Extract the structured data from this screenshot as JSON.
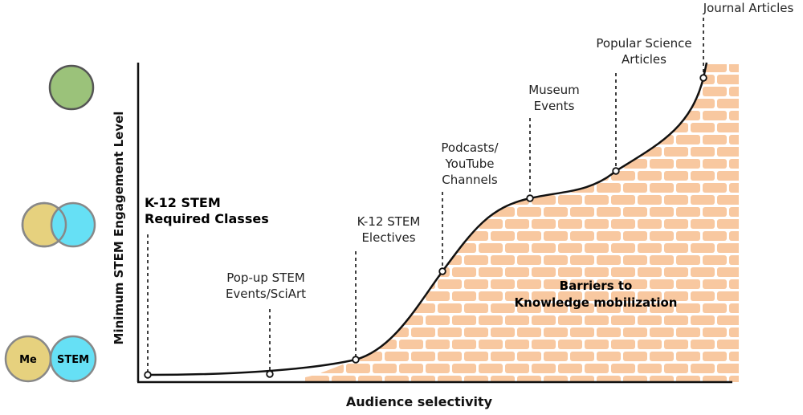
{
  "y_axis_label": "Minimum STEM Engagement Level",
  "x_axis_label": "Audience selectivity",
  "barrier_label": "Barriers to\nKnowledge mobilization",
  "legend": {
    "me_label": "Me",
    "stem_label": "STEM",
    "colors": {
      "me": "#e6d17e",
      "stem": "#66e0f5",
      "merged": "#9bc27a"
    }
  },
  "milestones": [
    {
      "name": "k12-required",
      "label": "K-12 STEM\nRequired Classes",
      "bold": true
    },
    {
      "name": "popup-stem",
      "label": "Pop-up STEM\nEvents/SciArt",
      "bold": false
    },
    {
      "name": "k12-electives",
      "label": "K-12 STEM\nElectives",
      "bold": false
    },
    {
      "name": "podcasts",
      "label": "Podcasts/\nYouTube\nChannels",
      "bold": false
    },
    {
      "name": "museum",
      "label": "Museum\nEvents",
      "bold": false
    },
    {
      "name": "popular-science",
      "label": "Popular Science\nArticles",
      "bold": false
    },
    {
      "name": "journal",
      "label": "Journal Articles",
      "bold": false
    }
  ],
  "colors": {
    "brick": "#f8c8a0",
    "mortar": "#ffffff",
    "curve": "#111111"
  }
}
